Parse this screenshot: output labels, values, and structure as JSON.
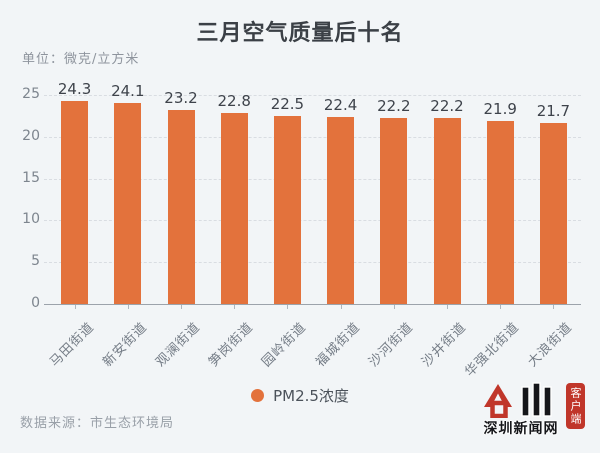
{
  "chart_data": {
    "type": "bar",
    "title": "三月空气质量后十名",
    "unit_label": "单位：微克/立方米",
    "categories": [
      "马田街道",
      "新安街道",
      "观澜街道",
      "笋岗街道",
      "园岭街道",
      "福城街道",
      "沙河街道",
      "沙井街道",
      "华强北街道",
      "大浪街道"
    ],
    "values": [
      24.3,
      24.1,
      23.2,
      22.8,
      22.5,
      22.4,
      22.2,
      22.2,
      21.9,
      21.7
    ],
    "series_name": "PM2.5浓度",
    "xlabel": "",
    "ylabel": "",
    "ylim": [
      0,
      25
    ],
    "yticks": [
      0,
      5,
      10,
      15,
      20,
      25
    ],
    "grid": "horizontal-dashed",
    "legend_position": "bottom-center",
    "bar_color": "#E3723C",
    "source": "数据来源：市生态环境局"
  },
  "colors": {
    "background": "#F2F5F7",
    "title_text": "#3B4046",
    "value_label": "#3E434B",
    "axis_text": "#7D858E",
    "category_text": "#747C86",
    "muted_text": "#99A0A8",
    "gridline": "#D9DDE2",
    "axis_line": "#9CA3AB",
    "accent_orange": "#E3723C",
    "logo_red": "#C0362A"
  },
  "logo": {
    "wordmark": "深圳新闻网",
    "badge": "客户端"
  }
}
